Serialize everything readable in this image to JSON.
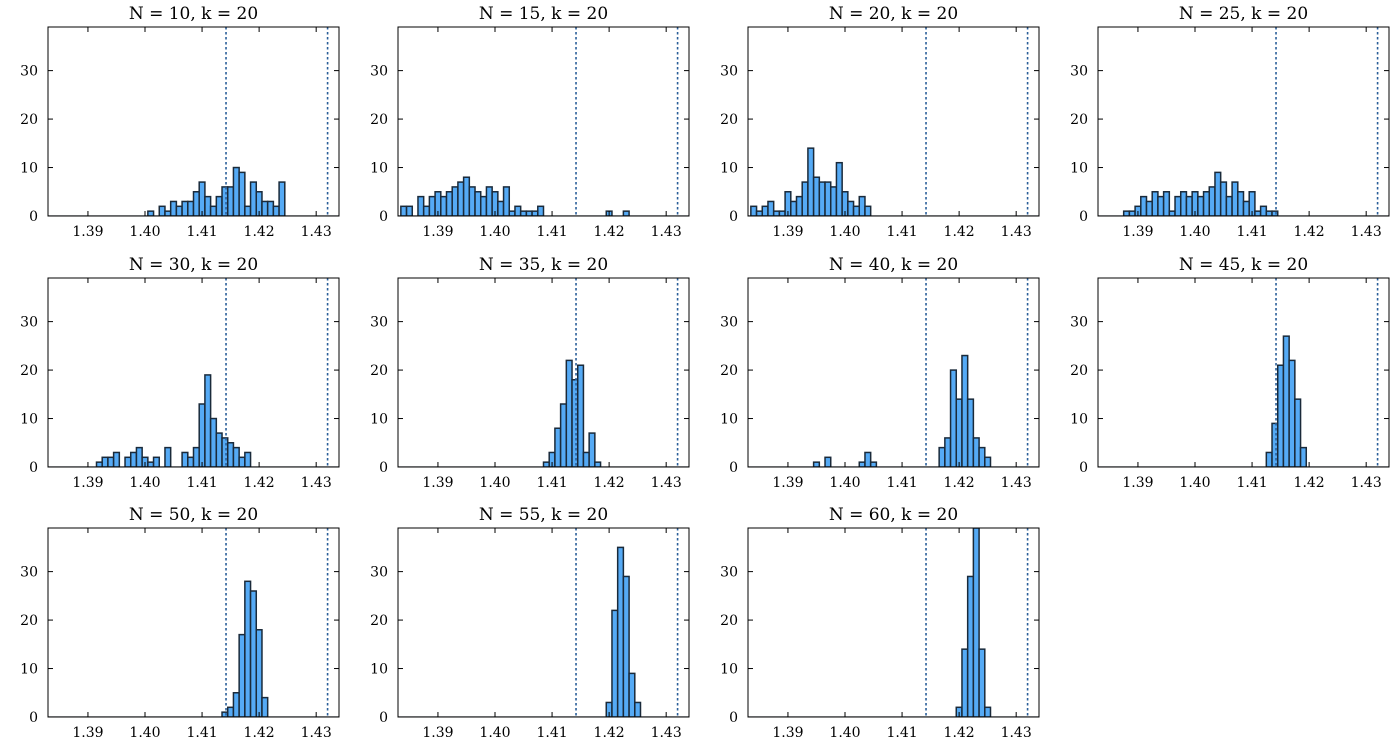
{
  "figure": {
    "type": "histogram-grid",
    "bar_color": "#55aaf5",
    "bar_edge_color": "#1a2a3a",
    "reference_line_color": "#2b5f99"
  },
  "chart_data": [
    {
      "type": "bar",
      "title": "N = 10, k = 20",
      "xlim": [
        1.383,
        1.434
      ],
      "ylim": [
        0,
        39
      ],
      "xticks": [
        "1.39",
        "1.40",
        "1.41",
        "1.42",
        "1.43"
      ],
      "yticks": [
        "0",
        "10",
        "20",
        "30"
      ],
      "reference_lines": [
        1.4142,
        1.432
      ],
      "bin_start": 1.3835,
      "bin_width": 0.001,
      "values": [
        0,
        0,
        0,
        0,
        0,
        0,
        0,
        0,
        0,
        0,
        0,
        0,
        0,
        0,
        0,
        0,
        0,
        1,
        0,
        2,
        1,
        3,
        2,
        3,
        3,
        5,
        7,
        4,
        2,
        4,
        6,
        6,
        10,
        9,
        2,
        7,
        5,
        3,
        3,
        2,
        7
      ]
    },
    {
      "type": "bar",
      "title": "N = 15, k = 20",
      "xlim": [
        1.383,
        1.434
      ],
      "ylim": [
        0,
        39
      ],
      "xticks": [
        "1.39",
        "1.40",
        "1.41",
        "1.42",
        "1.43"
      ],
      "yticks": [
        "0",
        "10",
        "20",
        "30"
      ],
      "reference_lines": [
        1.4142,
        1.432
      ],
      "bin_start": 1.3835,
      "bin_width": 0.001,
      "values": [
        2,
        2,
        0,
        4,
        2,
        4,
        5,
        4,
        5,
        6,
        7,
        8,
        6,
        5,
        4,
        6,
        5,
        3,
        6,
        1,
        2,
        1,
        1,
        1,
        2,
        0,
        0,
        0,
        0,
        0,
        0,
        0,
        0,
        0,
        0,
        0,
        1,
        0,
        0,
        1,
        0
      ]
    },
    {
      "type": "bar",
      "title": "N = 20, k = 20",
      "xlim": [
        1.383,
        1.434
      ],
      "ylim": [
        0,
        39
      ],
      "xticks": [
        "1.39",
        "1.40",
        "1.41",
        "1.42",
        "1.43"
      ],
      "yticks": [
        "0",
        "10",
        "20",
        "30"
      ],
      "reference_lines": [
        1.4142,
        1.432
      ],
      "bin_start": 1.3835,
      "bin_width": 0.001,
      "values": [
        2,
        1,
        2,
        3,
        1,
        1,
        5,
        3,
        4,
        7,
        14,
        8,
        7,
        7,
        6,
        11,
        5,
        3,
        2,
        4,
        2,
        0,
        0,
        0,
        0,
        0,
        0,
        0,
        0,
        0,
        0,
        0,
        0,
        0,
        0,
        0,
        0,
        0,
        0,
        0,
        0
      ]
    },
    {
      "type": "bar",
      "title": "N = 25, k = 20",
      "xlim": [
        1.383,
        1.434
      ],
      "ylim": [
        0,
        39
      ],
      "xticks": [
        "1.39",
        "1.40",
        "1.41",
        "1.42",
        "1.43"
      ],
      "yticks": [
        "0",
        "10",
        "20",
        "30"
      ],
      "reference_lines": [
        1.4142,
        1.432
      ],
      "bin_start": 1.3835,
      "bin_width": 0.001,
      "values": [
        0,
        0,
        0,
        0,
        1,
        1,
        2,
        4,
        3,
        5,
        4,
        5,
        1,
        4,
        5,
        4,
        5,
        4,
        5,
        6,
        9,
        7,
        4,
        7,
        5,
        3,
        5,
        1,
        2,
        1,
        1,
        0,
        0,
        0,
        0,
        0,
        0,
        0,
        0,
        0,
        0
      ]
    },
    {
      "type": "bar",
      "title": "N = 30, k = 20",
      "xlim": [
        1.383,
        1.434
      ],
      "ylim": [
        0,
        39
      ],
      "xticks": [
        "1.39",
        "1.40",
        "1.41",
        "1.42",
        "1.43"
      ],
      "yticks": [
        "0",
        "10",
        "20",
        "30"
      ],
      "reference_lines": [
        1.4142,
        1.432
      ],
      "bin_start": 1.3835,
      "bin_width": 0.001,
      "values": [
        0,
        0,
        0,
        0,
        0,
        0,
        0,
        0,
        1,
        2,
        2,
        3,
        0,
        2,
        3,
        4,
        2,
        1,
        2,
        0,
        4,
        0,
        0,
        3,
        2,
        4,
        13,
        19,
        10,
        7,
        6,
        5,
        4,
        2,
        3,
        0,
        0,
        0,
        0,
        0,
        0
      ]
    },
    {
      "type": "bar",
      "title": "N = 35, k = 20",
      "xlim": [
        1.383,
        1.434
      ],
      "ylim": [
        0,
        39
      ],
      "xticks": [
        "1.39",
        "1.40",
        "1.41",
        "1.42",
        "1.43"
      ],
      "yticks": [
        "0",
        "10",
        "20",
        "30"
      ],
      "reference_lines": [
        1.4142,
        1.432
      ],
      "bin_start": 1.3835,
      "bin_width": 0.001,
      "values": [
        0,
        0,
        0,
        0,
        0,
        0,
        0,
        0,
        0,
        0,
        0,
        0,
        0,
        0,
        0,
        0,
        0,
        0,
        0,
        0,
        0,
        0,
        0,
        0,
        0,
        1,
        3,
        8,
        13,
        22,
        18,
        21,
        3,
        7,
        1,
        0,
        0,
        0,
        0,
        0,
        0
      ]
    },
    {
      "type": "bar",
      "title": "N = 40, k = 20",
      "xlim": [
        1.383,
        1.434
      ],
      "ylim": [
        0,
        39
      ],
      "xticks": [
        "1.39",
        "1.40",
        "1.41",
        "1.42",
        "1.43"
      ],
      "yticks": [
        "0",
        "10",
        "20",
        "30"
      ],
      "reference_lines": [
        1.4142,
        1.432
      ],
      "bin_start": 1.3835,
      "bin_width": 0.001,
      "values": [
        0,
        0,
        0,
        0,
        0,
        0,
        0,
        0,
        0,
        0,
        0,
        1,
        0,
        2,
        0,
        0,
        0,
        0,
        0,
        1,
        3,
        1,
        0,
        0,
        0,
        0,
        0,
        0,
        0,
        0,
        0,
        0,
        0,
        4,
        6,
        20,
        14,
        23,
        14,
        6,
        4,
        2
      ]
    },
    {
      "type": "bar",
      "title": "N = 45, k = 20",
      "xlim": [
        1.383,
        1.434
      ],
      "ylim": [
        0,
        39
      ],
      "xticks": [
        "1.39",
        "1.40",
        "1.41",
        "1.42",
        "1.43"
      ],
      "yticks": [
        "0",
        "10",
        "20",
        "30"
      ],
      "reference_lines": [
        1.4142,
        1.432
      ],
      "bin_start": 1.3835,
      "bin_width": 0.001,
      "values": [
        0,
        0,
        0,
        0,
        0,
        0,
        0,
        0,
        0,
        0,
        0,
        0,
        0,
        0,
        0,
        0,
        0,
        0,
        0,
        0,
        0,
        0,
        0,
        0,
        0,
        0,
        0,
        0,
        0,
        3,
        9,
        21,
        27,
        22,
        14,
        4,
        0,
        0,
        0,
        0,
        0
      ]
    },
    {
      "type": "bar",
      "title": "N = 50, k = 20",
      "xlim": [
        1.383,
        1.434
      ],
      "ylim": [
        0,
        39
      ],
      "xticks": [
        "1.39",
        "1.40",
        "1.41",
        "1.42",
        "1.43"
      ],
      "yticks": [
        "0",
        "10",
        "20",
        "30"
      ],
      "reference_lines": [
        1.4142,
        1.432
      ],
      "bin_start": 1.3835,
      "bin_width": 0.001,
      "values": [
        0,
        0,
        0,
        0,
        0,
        0,
        0,
        0,
        0,
        0,
        0,
        0,
        0,
        0,
        0,
        0,
        0,
        0,
        0,
        0,
        0,
        0,
        0,
        0,
        0,
        0,
        0,
        0,
        0,
        0,
        1,
        2,
        5,
        17,
        28,
        26,
        18,
        4,
        0,
        0,
        0
      ]
    },
    {
      "type": "bar",
      "title": "N = 55, k = 20",
      "xlim": [
        1.383,
        1.434
      ],
      "ylim": [
        0,
        39
      ],
      "xticks": [
        "1.39",
        "1.40",
        "1.41",
        "1.42",
        "1.43"
      ],
      "yticks": [
        "0",
        "10",
        "20",
        "30"
      ],
      "reference_lines": [
        1.4142,
        1.432
      ],
      "bin_start": 1.3835,
      "bin_width": 0.001,
      "values": [
        0,
        0,
        0,
        0,
        0,
        0,
        0,
        0,
        0,
        0,
        0,
        0,
        0,
        0,
        0,
        0,
        0,
        0,
        0,
        0,
        0,
        0,
        0,
        0,
        0,
        0,
        0,
        0,
        0,
        0,
        0,
        0,
        0,
        0,
        0,
        0,
        3,
        22,
        35,
        29,
        9,
        3,
        0
      ]
    },
    {
      "type": "bar",
      "title": "N = 60, k = 20",
      "xlim": [
        1.383,
        1.434
      ],
      "ylim": [
        0,
        39
      ],
      "xticks": [
        "1.39",
        "1.40",
        "1.41",
        "1.42",
        "1.43"
      ],
      "yticks": [
        "0",
        "10",
        "20",
        "30"
      ],
      "reference_lines": [
        1.4142,
        1.432
      ],
      "bin_start": 1.3835,
      "bin_width": 0.001,
      "values": [
        0,
        0,
        0,
        0,
        0,
        0,
        0,
        0,
        0,
        0,
        0,
        0,
        0,
        0,
        0,
        0,
        0,
        0,
        0,
        0,
        0,
        0,
        0,
        0,
        0,
        0,
        0,
        0,
        0,
        0,
        0,
        0,
        0,
        0,
        0,
        0,
        2,
        14,
        29,
        39,
        14,
        2,
        0
      ]
    }
  ]
}
